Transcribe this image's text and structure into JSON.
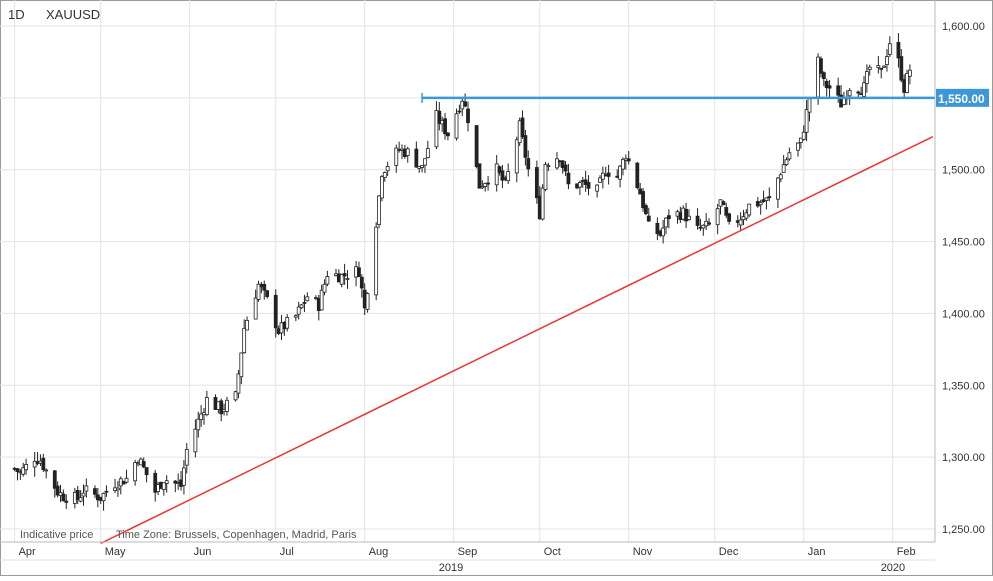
{
  "header": {
    "interval": "1D",
    "symbol": "XAUUSD"
  },
  "footer": {
    "indicative": "Indicative price",
    "timezone": "Time Zone: Brussels, Copenhagen, Madrid, Paris"
  },
  "colors": {
    "candle": "#222222",
    "grid": "#e4e4e4",
    "support_line": "#ee3333",
    "resistance_line": "#3c97d9",
    "price_badge": "#3c97d9"
  },
  "chart_data": {
    "type": "candlestick",
    "title": "",
    "symbol": "XAUUSD",
    "interval": "1D",
    "xlabel": "",
    "ylabel": "",
    "ylim": [
      1240,
      1610
    ],
    "y_ticks": [
      "1,250.00",
      "1,300.00",
      "1,350.00",
      "1,400.00",
      "1,450.00",
      "1,500.00",
      "1,550.00",
      "1,600.00"
    ],
    "y_tick_values": [
      1250,
      1300,
      1350,
      1400,
      1450,
      1500,
      1550,
      1600
    ],
    "x_months": [
      {
        "label": "Apr",
        "date": "2019-04-01"
      },
      {
        "label": "May",
        "date": "2019-05-01"
      },
      {
        "label": "Jun",
        "date": "2019-06-01"
      },
      {
        "label": "Jul",
        "date": "2019-07-01"
      },
      {
        "label": "Aug",
        "date": "2019-08-01"
      },
      {
        "label": "Sep",
        "date": "2019-09-01"
      },
      {
        "label": "Oct",
        "date": "2019-10-01"
      },
      {
        "label": "Nov",
        "date": "2019-11-01"
      },
      {
        "label": "Dec",
        "date": "2019-12-01"
      },
      {
        "label": "Jan",
        "date": "2020-01-01"
      },
      {
        "label": "Feb",
        "date": "2020-02-01"
      }
    ],
    "x_years": [
      {
        "label": "2019",
        "date": "2019-08-31"
      },
      {
        "label": "2020",
        "date": "2020-02-01"
      }
    ],
    "grid": true,
    "price_label": "1,550.00",
    "lines": [
      {
        "kind": "trend",
        "color": "#ee3333",
        "points": [
          {
            "date": "2019-05-01",
            "price": 1240
          },
          {
            "date": "2020-02-15",
            "price": 1523
          }
        ]
      },
      {
        "kind": "horizontal",
        "color": "#3c97d9",
        "price": 1550,
        "from": "2019-08-21",
        "to": "2020-02-15"
      }
    ],
    "close_path": [
      [
        "2019-04-01",
        1292
      ],
      [
        "2019-04-03",
        1289
      ],
      [
        "2019-04-08",
        1300
      ],
      [
        "2019-04-10",
        1298
      ],
      [
        "2019-04-16",
        1276
      ],
      [
        "2019-04-18",
        1273
      ],
      [
        "2019-04-23",
        1271
      ],
      [
        "2019-04-25",
        1277
      ],
      [
        "2019-05-01",
        1272
      ],
      [
        "2019-05-06",
        1282
      ],
      [
        "2019-05-10",
        1285
      ],
      [
        "2019-05-14",
        1300
      ],
      [
        "2019-05-20",
        1276
      ],
      [
        "2019-05-23",
        1285
      ],
      [
        "2019-05-29",
        1280
      ],
      [
        "2019-05-31",
        1305
      ],
      [
        "2019-06-04",
        1325
      ],
      [
        "2019-06-07",
        1340
      ],
      [
        "2019-06-12",
        1333
      ],
      [
        "2019-06-17",
        1342
      ],
      [
        "2019-06-20",
        1390
      ],
      [
        "2019-06-25",
        1420
      ],
      [
        "2019-06-28",
        1409
      ],
      [
        "2019-07-02",
        1388
      ],
      [
        "2019-07-08",
        1398
      ],
      [
        "2019-07-12",
        1412
      ],
      [
        "2019-07-16",
        1406
      ],
      [
        "2019-07-19",
        1428
      ],
      [
        "2019-07-24",
        1426
      ],
      [
        "2019-07-30",
        1430
      ],
      [
        "2019-08-01",
        1403
      ],
      [
        "2019-08-05",
        1464
      ],
      [
        "2019-08-07",
        1499
      ],
      [
        "2019-08-13",
        1514
      ],
      [
        "2019-08-16",
        1512
      ],
      [
        "2019-08-21",
        1501
      ],
      [
        "2019-08-26",
        1537
      ],
      [
        "2019-08-30",
        1525
      ],
      [
        "2019-09-04",
        1550
      ],
      [
        "2019-09-06",
        1536
      ],
      [
        "2019-09-10",
        1489
      ],
      [
        "2019-09-16",
        1500
      ],
      [
        "2019-09-19",
        1489
      ],
      [
        "2019-09-24",
        1530
      ],
      [
        "2019-09-27",
        1500
      ],
      [
        "2019-10-01",
        1470
      ],
      [
        "2019-10-03",
        1505
      ],
      [
        "2019-10-08",
        1510
      ],
      [
        "2019-10-11",
        1489
      ],
      [
        "2019-10-16",
        1490
      ],
      [
        "2019-10-21",
        1485
      ],
      [
        "2019-10-24",
        1500
      ],
      [
        "2019-10-28",
        1495
      ],
      [
        "2019-10-31",
        1511
      ],
      [
        "2019-11-05",
        1484
      ],
      [
        "2019-11-08",
        1460
      ],
      [
        "2019-11-12",
        1455
      ],
      [
        "2019-11-15",
        1468
      ],
      [
        "2019-11-20",
        1470
      ],
      [
        "2019-11-25",
        1458
      ],
      [
        "2019-11-29",
        1461
      ],
      [
        "2019-12-03",
        1477
      ],
      [
        "2019-12-06",
        1460
      ],
      [
        "2019-12-10",
        1467
      ],
      [
        "2019-12-13",
        1475
      ],
      [
        "2019-12-18",
        1478
      ],
      [
        "2019-12-20",
        1479
      ],
      [
        "2019-12-24",
        1499
      ],
      [
        "2019-12-27",
        1512
      ],
      [
        "2019-12-31",
        1519
      ],
      [
        "2020-01-03",
        1550
      ],
      [
        "2020-01-06",
        1575
      ],
      [
        "2020-01-08",
        1560
      ],
      [
        "2020-01-10",
        1557
      ],
      [
        "2020-01-14",
        1546
      ],
      [
        "2020-01-17",
        1558
      ],
      [
        "2020-01-22",
        1557
      ],
      [
        "2020-01-24",
        1571
      ],
      [
        "2020-01-28",
        1567
      ],
      [
        "2020-01-31",
        1589
      ],
      [
        "2020-02-03",
        1575
      ],
      [
        "2020-02-05",
        1557
      ],
      [
        "2020-02-07",
        1570
      ]
    ]
  }
}
